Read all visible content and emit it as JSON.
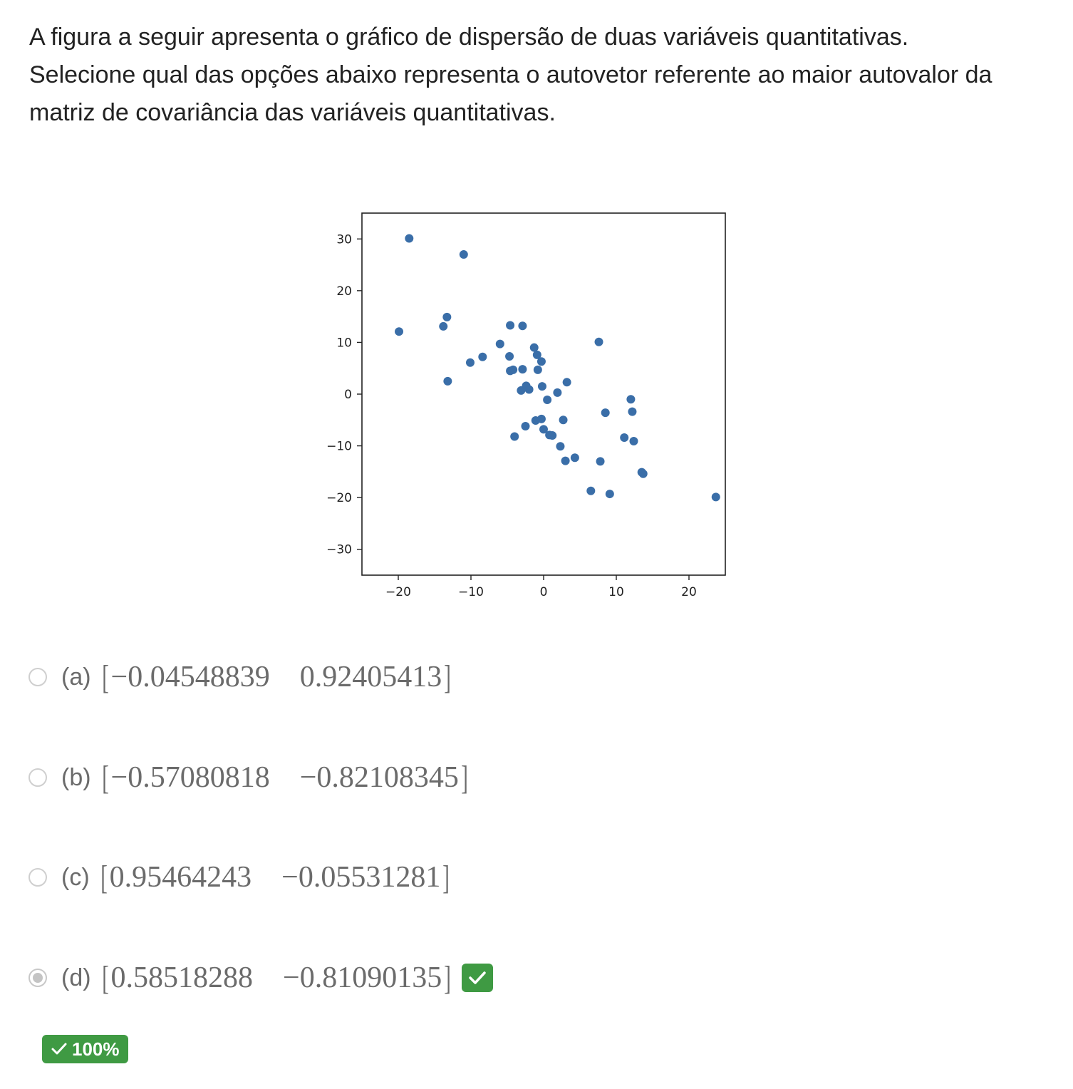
{
  "question": {
    "lines": [
      "A figura a seguir apresenta o gráfico de dispersão de duas variáveis quantitativas.",
      "Selecione qual das opções abaixo representa o autovetor referente ao maior autovalor da",
      "matriz de covariância das variáveis quantitativas."
    ]
  },
  "chart_data": {
    "type": "scatter",
    "color": "#3a6ea8",
    "xlim": [
      -25,
      25
    ],
    "ylim": [
      -35,
      35
    ],
    "x_ticks": [
      -20,
      -10,
      0,
      10,
      20
    ],
    "y_ticks": [
      30,
      20,
      10,
      0,
      -10,
      -20,
      -30
    ],
    "x_tick_labels": [
      "−20",
      "−10",
      "0",
      "10",
      "20"
    ],
    "y_tick_labels": [
      "30",
      "20",
      "10",
      "0",
      "−10",
      "−20",
      "−30"
    ],
    "grid": false,
    "points": [
      {
        "x": -18.5,
        "y": 30.1
      },
      {
        "x": -11.0,
        "y": 27.0
      },
      {
        "x": -19.9,
        "y": 12.1
      },
      {
        "x": -13.3,
        "y": 14.9
      },
      {
        "x": -13.8,
        "y": 13.1
      },
      {
        "x": -13.2,
        "y": 2.5
      },
      {
        "x": -10.1,
        "y": 6.1
      },
      {
        "x": -8.4,
        "y": 7.2
      },
      {
        "x": -6.0,
        "y": 9.7
      },
      {
        "x": -4.6,
        "y": 13.3
      },
      {
        "x": -2.9,
        "y": 13.2
      },
      {
        "x": -4.7,
        "y": 7.3
      },
      {
        "x": -4.6,
        "y": 4.5
      },
      {
        "x": -4.2,
        "y": 4.7
      },
      {
        "x": -2.9,
        "y": 4.8
      },
      {
        "x": -1.3,
        "y": 9.0
      },
      {
        "x": -0.9,
        "y": 7.6
      },
      {
        "x": -0.3,
        "y": 6.3
      },
      {
        "x": -0.8,
        "y": 4.7
      },
      {
        "x": -3.1,
        "y": 0.7
      },
      {
        "x": -2.4,
        "y": 1.6
      },
      {
        "x": -2.0,
        "y": 0.9
      },
      {
        "x": -0.2,
        "y": 1.5
      },
      {
        "x": 0.5,
        "y": -1.1
      },
      {
        "x": 1.9,
        "y": 0.3
      },
      {
        "x": 3.2,
        "y": 2.3
      },
      {
        "x": -1.1,
        "y": -5.1
      },
      {
        "x": -0.3,
        "y": -4.8
      },
      {
        "x": -2.5,
        "y": -6.2
      },
      {
        "x": 0.0,
        "y": -6.8
      },
      {
        "x": 0.8,
        "y": -7.9
      },
      {
        "x": 1.2,
        "y": -8.0
      },
      {
        "x": 2.7,
        "y": -5.0
      },
      {
        "x": -4.0,
        "y": -8.2
      },
      {
        "x": 2.3,
        "y": -10.1
      },
      {
        "x": 3.0,
        "y": -12.9
      },
      {
        "x": 4.3,
        "y": -12.3
      },
      {
        "x": 7.6,
        "y": 10.1
      },
      {
        "x": 8.5,
        "y": -3.6
      },
      {
        "x": 7.8,
        "y": -13.0
      },
      {
        "x": 6.5,
        "y": -18.7
      },
      {
        "x": 9.1,
        "y": -19.3
      },
      {
        "x": 11.1,
        "y": -8.4
      },
      {
        "x": 12.4,
        "y": -9.1
      },
      {
        "x": 12.0,
        "y": -1.0
      },
      {
        "x": 12.2,
        "y": -3.4
      },
      {
        "x": 13.5,
        "y": -15.1
      },
      {
        "x": 13.7,
        "y": -15.4
      },
      {
        "x": 23.7,
        "y": -19.9
      }
    ]
  },
  "options": [
    {
      "letter": "(a)",
      "v1": "−0.04548839",
      "v2": "0.92405413",
      "selected": false,
      "correct": false
    },
    {
      "letter": "(b)",
      "v1": "−0.57080818",
      "v2": "−0.82108345",
      "selected": false,
      "correct": false
    },
    {
      "letter": "(c)",
      "v1": "0.95464243",
      "v2": "−0.05531281",
      "selected": false,
      "correct": false
    },
    {
      "letter": "(d)",
      "v1": "0.58518288",
      "v2": "−0.81090135",
      "selected": true,
      "correct": true
    }
  ],
  "brackets": {
    "open": "[",
    "close": "]"
  },
  "score": {
    "text": "100%",
    "color": "#3f9a43"
  }
}
